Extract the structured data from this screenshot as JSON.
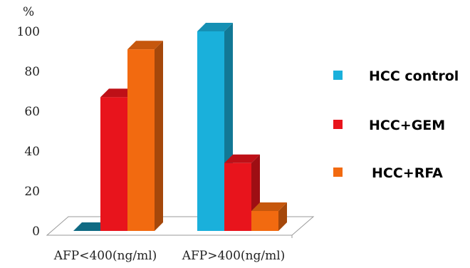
{
  "chart_data": {
    "type": "bar",
    "ylabel": "%",
    "ylim": [
      0,
      100
    ],
    "yticks": [
      0,
      20,
      40,
      60,
      80,
      100
    ],
    "categories": [
      "AFP<400(ng/ml)",
      "AFP>400(ng/ml)"
    ],
    "series": [
      {
        "name": "HCC control",
        "color": "#1ab0db",
        "values": [
          0,
          100
        ]
      },
      {
        "name": "HCC+GEM",
        "color": "#e8141c",
        "values": [
          67,
          34
        ]
      },
      {
        "name": "HCC+RFA",
        "color": "#f26a10",
        "values": [
          91,
          10
        ]
      }
    ],
    "legend_position": "right",
    "style": "3d"
  }
}
